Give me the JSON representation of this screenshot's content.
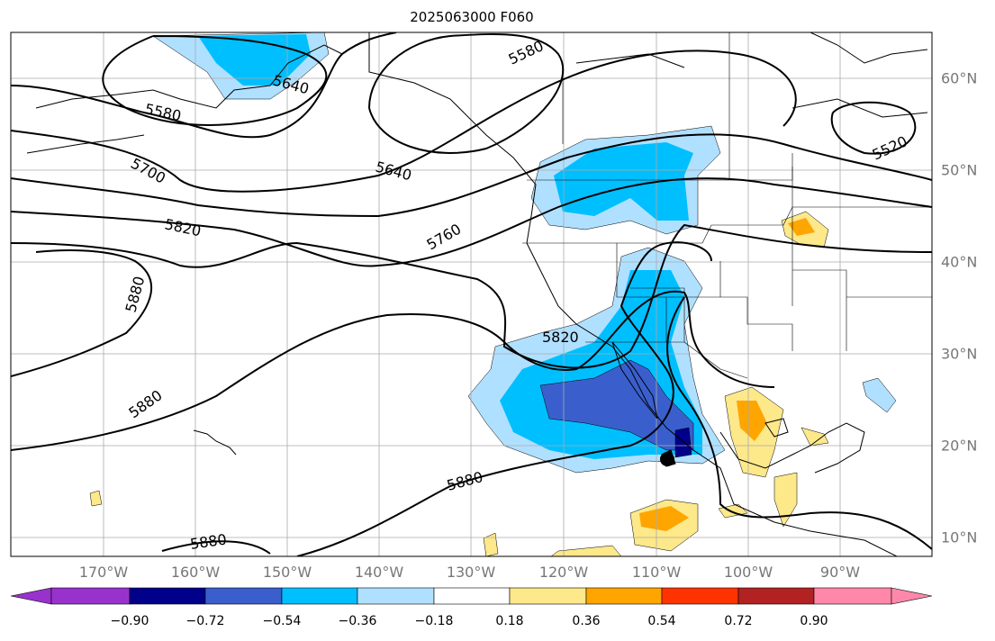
{
  "title": "2025063000 F060",
  "map": {
    "lon_labels": [
      "170°W",
      "160°W",
      "150°W",
      "140°W",
      "130°W",
      "120°W",
      "110°W",
      "100°W",
      "90°W"
    ],
    "lat_labels": [
      "60°N",
      "50°N",
      "40°N",
      "30°N",
      "20°N",
      "10°N"
    ],
    "contour_labels": [
      "5580",
      "5640",
      "5580",
      "5520",
      "5640",
      "5700",
      "5760",
      "5820",
      "5820",
      "5880",
      "5880",
      "5880",
      "5880"
    ]
  },
  "colorbar": {
    "ticks": [
      "−0.90",
      "−0.72",
      "−0.54",
      "−0.36",
      "−0.18",
      "0.18",
      "0.36",
      "0.54",
      "0.72",
      "0.90"
    ],
    "colors": [
      "#9932cc",
      "#00008b",
      "#3a5fcd",
      "#00bfff",
      "#b0e0ff",
      "#ffffff",
      "#fde88a",
      "#ffa500",
      "#ff3300",
      "#b22222",
      "#ff88aa"
    ]
  }
}
